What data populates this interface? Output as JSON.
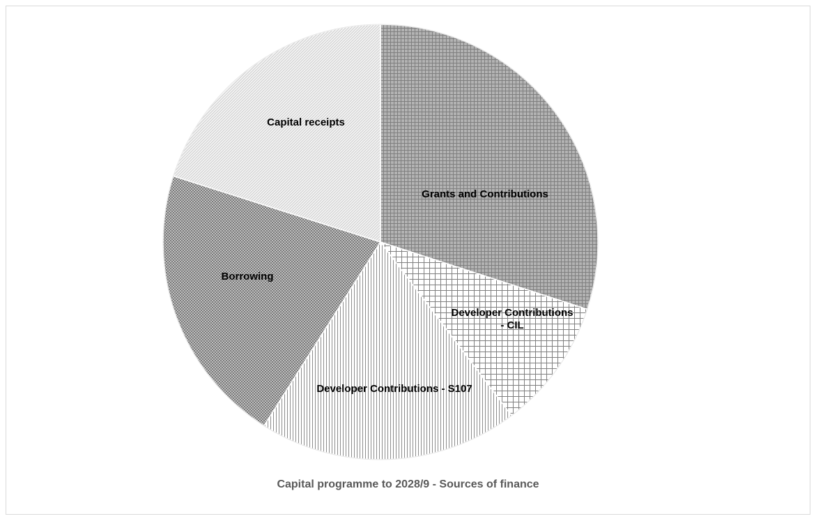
{
  "chart_data": {
    "type": "pie",
    "title": "Capital programme to 2028/9 - Sources of finance",
    "slices": [
      {
        "label": "Grants and Contributions",
        "value": 30.0,
        "fill": "#a6a6a6",
        "pattern": "grid-dense"
      },
      {
        "label": "Developer Contributions - CIL",
        "value": 9.7,
        "fill": "#ffffff",
        "pattern": "crosshatch"
      },
      {
        "label": "Developer Contributions - S107",
        "value": 19.3,
        "fill": "#ffffff",
        "pattern": "vertical"
      },
      {
        "label": "Borrowing",
        "value": 20.9,
        "fill": "#8c8c8c",
        "pattern": "checker"
      },
      {
        "label": "Capital receipts",
        "value": 20.1,
        "fill": "#f2f2f2",
        "pattern": "diagonal"
      }
    ]
  }
}
